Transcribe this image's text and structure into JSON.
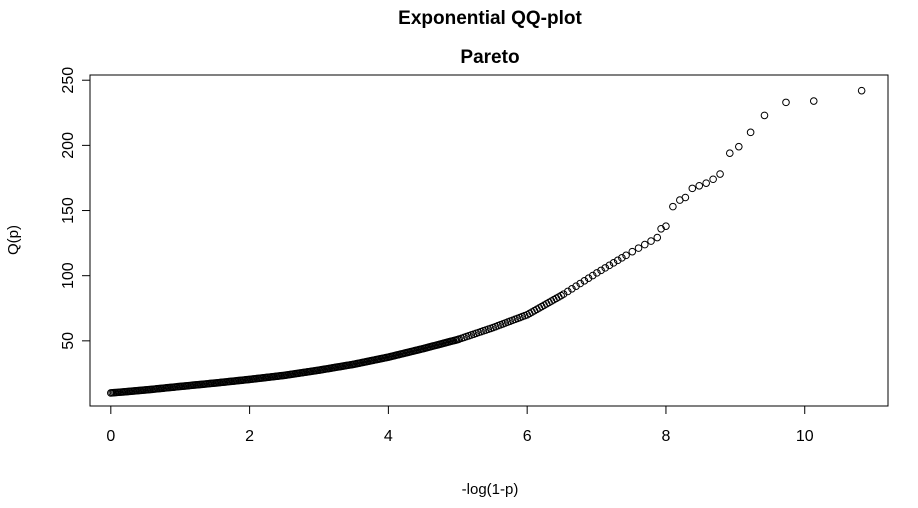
{
  "chart_data": {
    "type": "scatter",
    "title": "Exponential QQ-plot",
    "subtitle": "Pareto",
    "xlabel": "-log(1-p)",
    "ylabel": "Q(p)",
    "xlim": [
      -0.3,
      11.2
    ],
    "ylim": [
      0,
      254
    ],
    "x_ticks": [
      "0",
      "2",
      "4",
      "6",
      "8",
      "10"
    ],
    "y_ticks": [
      "50",
      "100",
      "150",
      "200",
      "250"
    ],
    "grid": false,
    "legend": "none",
    "curve": [
      [
        0.0,
        10.0
      ],
      [
        0.5,
        12.3
      ],
      [
        1.0,
        15.0
      ],
      [
        1.5,
        17.6
      ],
      [
        2.0,
        20.4
      ],
      [
        2.5,
        23.5
      ],
      [
        3.0,
        27.5
      ],
      [
        3.5,
        32.0
      ],
      [
        4.0,
        37.5
      ],
      [
        4.5,
        44.0
      ],
      [
        5.0,
        51.0
      ],
      [
        5.5,
        60.0
      ],
      [
        6.0,
        70.0
      ],
      [
        6.5,
        85.0
      ],
      [
        7.0,
        102.0
      ],
      [
        7.5,
        118.0
      ],
      [
        7.9,
        130.0
      ]
    ],
    "tail_points": [
      [
        7.93,
        136
      ],
      [
        8.0,
        138
      ],
      [
        8.1,
        153
      ],
      [
        8.2,
        158
      ],
      [
        8.28,
        160
      ],
      [
        8.38,
        167
      ],
      [
        8.48,
        169
      ],
      [
        8.58,
        171
      ],
      [
        8.68,
        174
      ],
      [
        8.78,
        178
      ],
      [
        8.92,
        194
      ],
      [
        9.05,
        199
      ],
      [
        9.22,
        210
      ],
      [
        9.42,
        223
      ],
      [
        9.73,
        233
      ],
      [
        10.13,
        234
      ],
      [
        10.82,
        242
      ]
    ]
  }
}
